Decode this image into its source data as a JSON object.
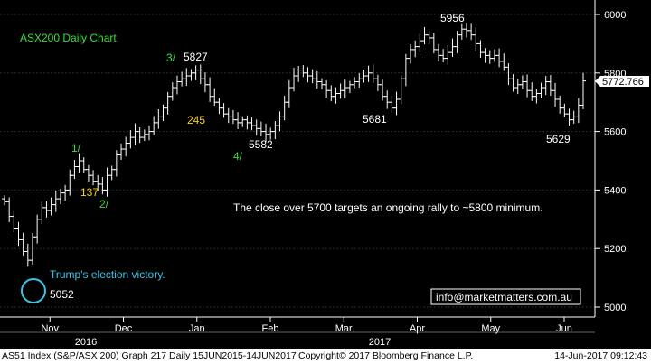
{
  "chart_data": {
    "type": "ohlc",
    "title": "ASX200 Daily Chart",
    "xlabel": "",
    "ylabel": "",
    "ylim": [
      4950,
      6080
    ],
    "y_ticks": [
      5000,
      5200,
      5400,
      5600,
      5800,
      6000
    ],
    "x_ticks": [
      "Nov",
      "Dec",
      "Jan",
      "Feb",
      "Mar",
      "Apr",
      "May",
      "Jun"
    ],
    "years": [
      "2016",
      "2017"
    ],
    "last_price": "5772.766",
    "grid": true,
    "series": [
      {
        "close": [
          5360,
          5310,
          5270,
          5230,
          5190,
          5160,
          5240,
          5300,
          5340,
          5330,
          5350,
          5370,
          5390,
          5400,
          5450,
          5480,
          5500,
          5470,
          5450,
          5430,
          5420,
          5400,
          5450,
          5470,
          5520,
          5540,
          5560,
          5580,
          5600,
          5580,
          5590,
          5600,
          5630,
          5650,
          5680,
          5720,
          5750,
          5770,
          5780,
          5790,
          5800,
          5810,
          5780,
          5760,
          5720,
          5700,
          5680,
          5660,
          5650,
          5640,
          5630,
          5640,
          5630,
          5620,
          5610,
          5600,
          5590,
          5600,
          5620,
          5650,
          5700,
          5750,
          5790,
          5810,
          5800,
          5790,
          5780,
          5770,
          5760,
          5740,
          5720,
          5730,
          5740,
          5750,
          5760,
          5770,
          5780,
          5790,
          5800,
          5780,
          5760,
          5720,
          5700,
          5680,
          5710,
          5780,
          5850,
          5880,
          5890,
          5910,
          5930,
          5920,
          5880,
          5860,
          5850,
          5870,
          5890,
          5930,
          5950,
          5945,
          5930,
          5900,
          5870,
          5860,
          5850,
          5860,
          5840,
          5820,
          5780,
          5750,
          5760,
          5770,
          5740,
          5720,
          5730,
          5750,
          5770,
          5740,
          5710,
          5680,
          5660,
          5640,
          5650,
          5690,
          5772.766
        ]
      }
    ],
    "annotations": [
      {
        "text": "5827",
        "x": 45,
        "y": 5827
      },
      {
        "text": "5956",
        "x": 100,
        "y": 5956
      },
      {
        "text": "5681",
        "x": 85,
        "y": 5681
      },
      {
        "text": "5582",
        "x": 57,
        "y": 5582
      },
      {
        "text": "5629",
        "x": 121,
        "y": 5629
      },
      {
        "text": "5052",
        "x": 5,
        "y": 5052
      },
      {
        "text": "3/",
        "x": 40,
        "y": 5827
      },
      {
        "text": "1/",
        "x": 17,
        "y": 5520
      },
      {
        "text": "2/",
        "x": 23,
        "y": 5390
      },
      {
        "text": "4/",
        "x": 55,
        "y": 5510
      },
      {
        "text": "137",
        "x": 18,
        "y": 5405
      },
      {
        "text": "245",
        "x": 48,
        "y": 5630
      }
    ],
    "notes": [
      "The close over 5700 targets an ongoing rally to ~5800 minimum.",
      "Trump's election victory."
    ]
  },
  "contact": "info@marketmatters.com.au",
  "footer": {
    "left": "AS51 Index (S&P/ASX 200) Graph 217  Daily 15JUN2015-14JUN2017",
    "middle": "Copyright© 2017 Bloomberg Finance L.P.",
    "right": "14-Jun-2017 09:12:43"
  },
  "colors": {
    "background": "#000000",
    "bars": "#ffffff",
    "title": "#3cdc3c",
    "wave_label": "#3cdc3c",
    "count_label": "#ffd400",
    "election_note": "#35c6e8",
    "grid": "#2a2a2a"
  }
}
